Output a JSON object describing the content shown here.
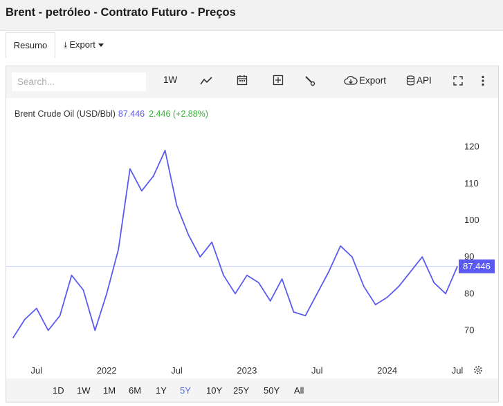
{
  "page": {
    "title": "Brent - petróleo - Contrato Futuro - Preços"
  },
  "tabs": {
    "summary": "Resumo",
    "export": "Export"
  },
  "toolbar": {
    "search_placeholder": "Search...",
    "interval": "1W",
    "export": "Export",
    "api": "API",
    "icons": [
      "line-chart-icon",
      "calendar-icon",
      "add-indicator-icon",
      "drawing-tool-icon",
      "cloud-download-icon",
      "database-icon",
      "fullscreen-icon",
      "more-icon"
    ]
  },
  "legend": {
    "name": "Brent Crude Oil (USD/Bbl)",
    "value": "87.446",
    "change": "2.446 (+2.88%)"
  },
  "range_buttons": [
    "1D",
    "1W",
    "1M",
    "6M",
    "1Y",
    "5Y",
    "10Y",
    "25Y",
    "50Y",
    "All"
  ],
  "active_range": "5Y",
  "colors": {
    "line": "#5a5af0",
    "change_positive": "#33b233",
    "active_range": "#4b6df0",
    "last_price_tag": "#5a5af0"
  },
  "chart_data": {
    "type": "line",
    "series": [
      {
        "name": "Brent Crude Oil (USD/Bbl)",
        "last": 87.446
      }
    ],
    "x": [
      "2021-05",
      "2021-06",
      "2021-07",
      "2021-08",
      "2021-09",
      "2021-10",
      "2021-11",
      "2021-12",
      "2022-01",
      "2022-02",
      "2022-03",
      "2022-04",
      "2022-05",
      "2022-06",
      "2022-07",
      "2022-08",
      "2022-09",
      "2022-10",
      "2022-11",
      "2022-12",
      "2023-01",
      "2023-02",
      "2023-03",
      "2023-04",
      "2023-05",
      "2023-06",
      "2023-07",
      "2023-08",
      "2023-09",
      "2023-10",
      "2023-11",
      "2023-12",
      "2024-01",
      "2024-02",
      "2024-03",
      "2024-04",
      "2024-05",
      "2024-06",
      "2024-07"
    ],
    "y": [
      68,
      73,
      76,
      70,
      74,
      85,
      81,
      70,
      80,
      92,
      114,
      108,
      112,
      119,
      104,
      96,
      90,
      94,
      85,
      80,
      85,
      83,
      78,
      84,
      75,
      74,
      80,
      86,
      93,
      90,
      82,
      77,
      79,
      82,
      86,
      90,
      83,
      80,
      87.4
    ],
    "x_ticks": [
      "Jul",
      "2022",
      "Jul",
      "2023",
      "Jul",
      "2024",
      "Jul"
    ],
    "y_ticks": [
      70,
      80,
      90,
      100,
      110,
      120
    ],
    "ylim": [
      62,
      125
    ],
    "last_price_label": "87.446",
    "grid": false,
    "legend": "top-left"
  }
}
